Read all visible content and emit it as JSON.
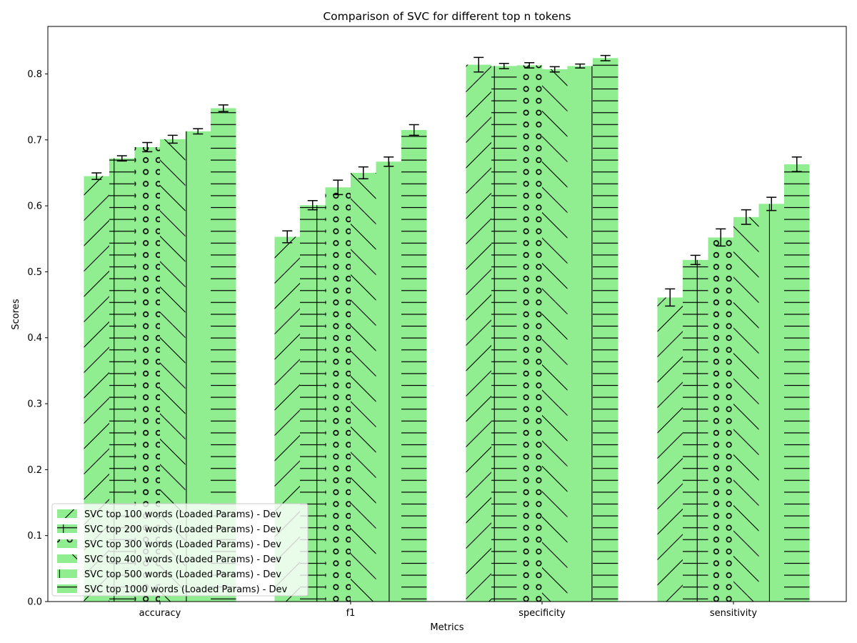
{
  "chart_data": {
    "type": "bar",
    "title": "Comparison of SVC for different top n tokens",
    "xlabel": "Metrics",
    "ylabel": "Scores",
    "categories": [
      "accuracy",
      "f1",
      "specificity",
      "sensitivity"
    ],
    "ylim": [
      0,
      0.872
    ],
    "yticks": [
      "0.0",
      "0.1",
      "0.2",
      "0.3",
      "0.4",
      "0.5",
      "0.6",
      "0.7",
      "0.8"
    ],
    "grid": false,
    "legend_position": "lower-left",
    "bar_color": "#90ee90",
    "series": [
      {
        "name": "SVC top 100 words  (Loaded Params) - Dev",
        "hatch": "/",
        "values": [
          0.645,
          0.553,
          0.814,
          0.461
        ],
        "errors": [
          0.005,
          0.009,
          0.011,
          0.013
        ]
      },
      {
        "name": "SVC top 200 words  (Loaded Params) - Dev",
        "hatch": "+",
        "values": [
          0.672,
          0.601,
          0.812,
          0.518
        ],
        "errors": [
          0.004,
          0.007,
          0.004,
          0.007
        ]
      },
      {
        "name": "SVC top 300 words  (Loaded Params) - Dev",
        "hatch": "o",
        "values": [
          0.689,
          0.628,
          0.813,
          0.552
        ],
        "errors": [
          0.007,
          0.011,
          0.004,
          0.013
        ]
      },
      {
        "name": "SVC top 400 words  (Loaded Params) - Dev",
        "hatch": "\\",
        "values": [
          0.701,
          0.65,
          0.807,
          0.583
        ],
        "errors": [
          0.006,
          0.009,
          0.004,
          0.011
        ]
      },
      {
        "name": "SVC top 500 words  (Loaded Params) - Dev",
        "hatch": "|",
        "values": [
          0.713,
          0.667,
          0.812,
          0.603
        ],
        "errors": [
          0.004,
          0.007,
          0.003,
          0.01
        ]
      },
      {
        "name": "SVC top 1000 words  (Loaded Params) - Dev",
        "hatch": "-",
        "values": [
          0.748,
          0.715,
          0.824,
          0.663
        ],
        "errors": [
          0.005,
          0.008,
          0.004,
          0.011
        ]
      }
    ]
  }
}
